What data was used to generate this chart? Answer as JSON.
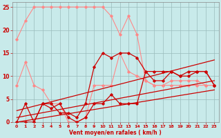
{
  "xlabel": "Vent moyen/en rafales ( km/h )",
  "xlim": [
    -0.5,
    23.5
  ],
  "ylim": [
    0,
    26
  ],
  "xticks": [
    0,
    1,
    2,
    3,
    4,
    5,
    6,
    7,
    8,
    9,
    10,
    11,
    12,
    13,
    14,
    15,
    16,
    17,
    18,
    19,
    20,
    21,
    22,
    23
  ],
  "yticks": [
    0,
    5,
    10,
    15,
    20,
    25
  ],
  "bg_color": "#c8eaea",
  "grid_color": "#99bbbb",
  "series": {
    "pink_top": {
      "x": [
        0,
        1,
        2,
        3,
        4,
        5,
        6,
        7,
        8,
        9,
        10,
        11,
        12,
        13,
        14,
        15,
        16,
        17,
        18,
        19,
        20,
        21,
        22,
        23
      ],
      "y": [
        18,
        22,
        25,
        25,
        25,
        25,
        25,
        25,
        25,
        25,
        25,
        23,
        19,
        23,
        19,
        9,
        8,
        8,
        8,
        8,
        8,
        8,
        8,
        8
      ],
      "color": "#ff8888",
      "lw": 0.8,
      "marker": "D",
      "ms": 1.8
    },
    "pink_bot": {
      "x": [
        0,
        1,
        2,
        3,
        4,
        5,
        6,
        7,
        8,
        9,
        10,
        11,
        12,
        13,
        14,
        15,
        16,
        17,
        18,
        19,
        20,
        21,
        22,
        23
      ],
      "y": [
        8,
        13,
        8,
        7,
        4,
        4,
        0,
        0,
        1,
        8,
        8,
        8,
        15,
        11,
        10,
        9,
        8,
        8,
        9,
        9,
        9,
        9,
        8,
        8
      ],
      "color": "#ff8888",
      "lw": 0.8,
      "marker": "D",
      "ms": 1.8
    },
    "red_line1": {
      "x": [
        0,
        1,
        2,
        3,
        4,
        5,
        6,
        7,
        8,
        9,
        10,
        11,
        12,
        13,
        14,
        15,
        16,
        17,
        18,
        19,
        20,
        21,
        22,
        23
      ],
      "y": [
        0,
        4,
        0,
        4,
        4,
        2,
        2,
        1,
        4,
        12,
        15,
        14,
        15,
        15,
        14,
        11,
        11,
        11,
        11,
        10,
        11,
        11,
        11,
        8
      ],
      "color": "#cc0000",
      "lw": 0.9,
      "marker": "D",
      "ms": 1.8
    },
    "red_line2": {
      "x": [
        0,
        1,
        2,
        3,
        4,
        5,
        6,
        7,
        8,
        9,
        10,
        11,
        12,
        13,
        14,
        15,
        16,
        17,
        18,
        19,
        20,
        21,
        22,
        23
      ],
      "y": [
        0,
        0,
        0,
        4,
        3,
        4,
        1,
        0,
        1,
        4,
        4,
        6,
        4,
        4,
        4,
        11,
        9,
        9,
        11,
        10,
        10,
        11,
        11,
        8
      ],
      "color": "#cc0000",
      "lw": 0.9,
      "marker": "D",
      "ms": 1.8
    },
    "trend_upper": {
      "x": [
        0,
        23
      ],
      "y": [
        2.5,
        13.5
      ],
      "color": "#cc0000",
      "lw": 0.9
    },
    "trend_mid": {
      "x": [
        0,
        23
      ],
      "y": [
        1.0,
        9.0
      ],
      "color": "#cc0000",
      "lw": 0.9
    },
    "trend_lower": {
      "x": [
        0,
        23
      ],
      "y": [
        0.0,
        7.0
      ],
      "color": "#cc0000",
      "lw": 0.9
    }
  }
}
